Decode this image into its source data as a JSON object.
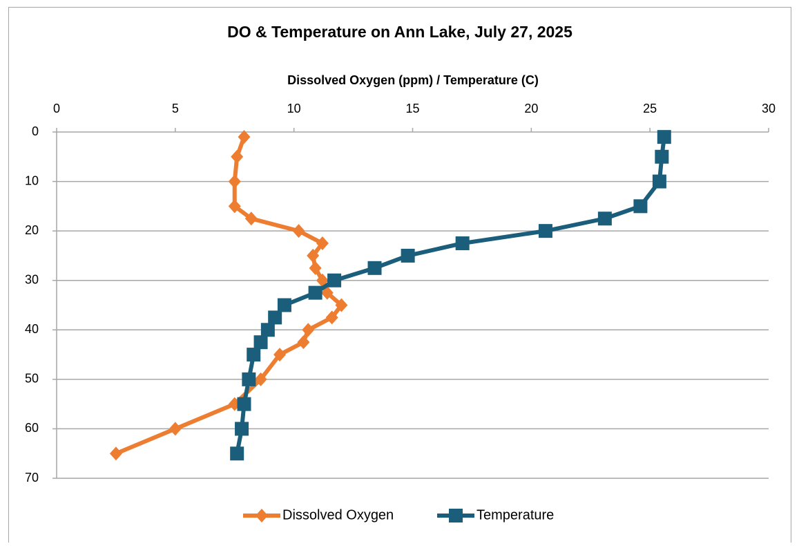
{
  "chart_data": {
    "type": "line",
    "title": "DO & Temperature on Ann Lake, July 27, 2025",
    "x_label": "Dissolved Oxygen (ppm) / Temperature (C)",
    "y": [
      1,
      5,
      10,
      15,
      17.5,
      20,
      22.5,
      25,
      27.5,
      30,
      32.5,
      35,
      37.5,
      40,
      42.5,
      45,
      50,
      55,
      60,
      65
    ],
    "series": [
      {
        "name": "Dissolved Oxygen",
        "color": "#ed7d31",
        "marker": "diamond",
        "values": [
          7.9,
          7.6,
          7.5,
          7.5,
          8.2,
          10.2,
          11.2,
          10.8,
          10.9,
          11.2,
          11.4,
          12.0,
          11.6,
          10.6,
          10.4,
          9.4,
          8.6,
          7.5,
          5.0,
          2.5
        ]
      },
      {
        "name": "Temperature",
        "color": "#1b5e7b",
        "marker": "square",
        "values": [
          25.6,
          25.5,
          25.4,
          24.6,
          23.1,
          20.6,
          17.1,
          14.8,
          13.4,
          11.7,
          10.9,
          9.6,
          9.2,
          8.9,
          8.6,
          8.3,
          8.1,
          7.9,
          7.8,
          7.6
        ]
      }
    ],
    "xlim": [
      0,
      30
    ],
    "xticks": [
      0,
      5,
      10,
      15,
      20,
      25,
      30
    ],
    "ylim": [
      0,
      70
    ],
    "yticks": [
      0,
      10,
      20,
      30,
      40,
      50,
      60,
      70
    ],
    "y_inverted": true,
    "x_axis_position": "top",
    "grid": true,
    "legend": "bottom"
  }
}
